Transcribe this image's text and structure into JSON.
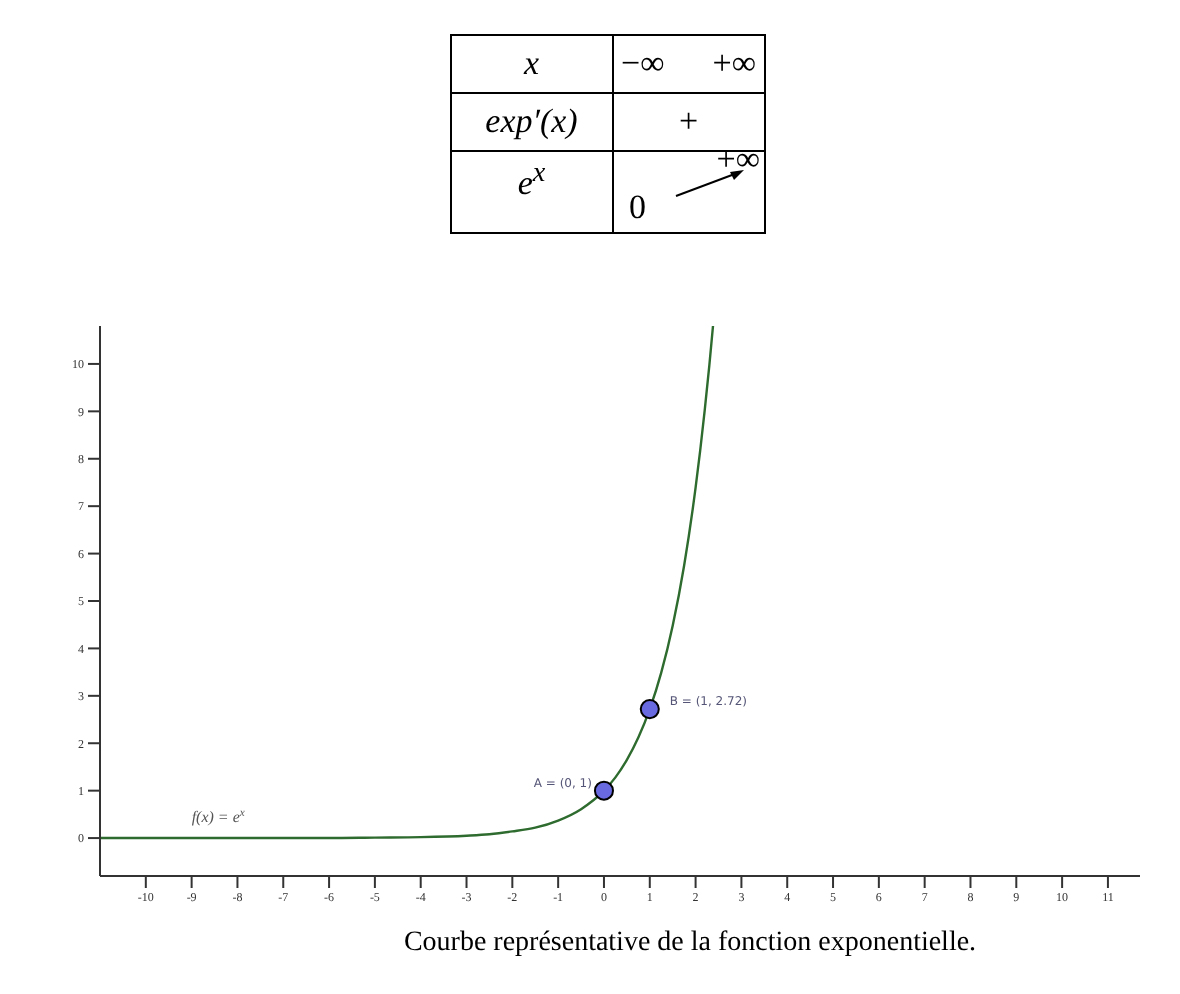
{
  "chart_data": {
    "type": "line",
    "annotations": [
      "x",
      "−∞",
      "+∞",
      "exp′(x)",
      "+",
      "e$^{x}$",
      "0",
      "+∞",
      {
        "text": "A = (0, 1)",
        "x": 0,
        "y": 1
      },
      {
        "text": "B = (1, 2.72)",
        "x": 1,
        "y": 2.72
      },
      "Courbe représentative de la fonction exponentielle."
    ],
    "series": [
      {
        "name": "f(x) = e$^{x}$",
        "marker": "none",
        "color": "#2e6b2e",
        "x": [
          -11,
          -10,
          -9,
          -8,
          -7,
          -6,
          -5,
          -4,
          -3,
          -2.5,
          -2,
          -1.5,
          -1,
          -0.5,
          0,
          0.25,
          0.5,
          0.75,
          1,
          1.25,
          1.5,
          1.75,
          2,
          2.1,
          2.2,
          2.3,
          2.38
        ],
        "values": [
          0.0,
          0.0,
          0.0,
          0.0,
          0.0,
          0.0,
          0.01,
          0.02,
          0.05,
          0.08,
          0.14,
          0.22,
          0.37,
          0.61,
          1,
          1.28,
          1.65,
          2.12,
          2.72,
          3.49,
          4.48,
          5.75,
          7.39,
          8.17,
          9.03,
          9.97,
          10.8
        ]
      },
      {
        "type": "scatter",
        "marker": "circle",
        "color": "#6a6ae0",
        "x": [
          0,
          1
        ],
        "values": [
          1,
          2.72
        ]
      }
    ],
    "xlim": [
      -11,
      11.7
    ],
    "xticks": [
      -10,
      -9,
      -8,
      -7,
      -6,
      -5,
      -4,
      -3,
      -2,
      -1,
      0,
      1,
      2,
      3,
      4,
      5,
      6,
      7,
      8,
      9,
      10,
      11
    ],
    "ylim": [
      -0.8,
      10.8
    ],
    "yticks": [
      0,
      1,
      2,
      3,
      4,
      5,
      6,
      7,
      8,
      9,
      10
    ],
    "grid": false
  }
}
